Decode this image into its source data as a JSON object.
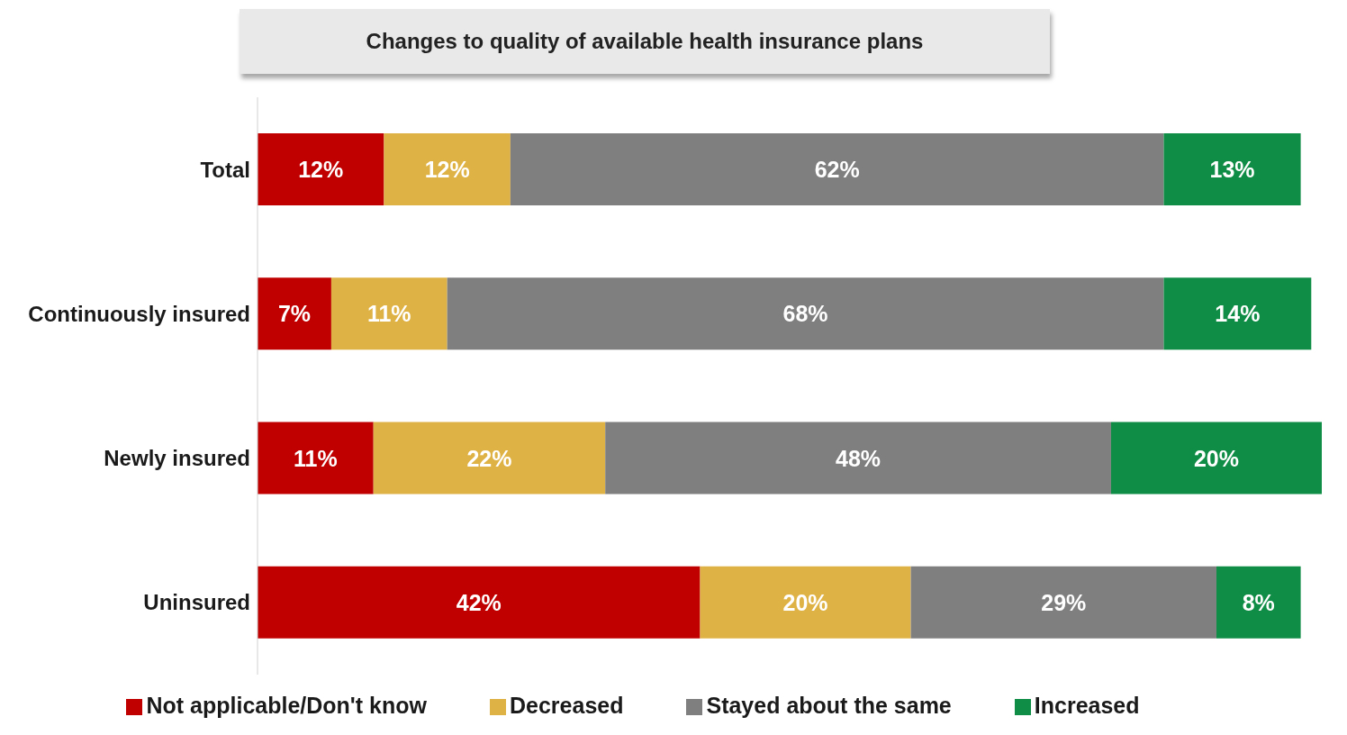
{
  "chart_data": {
    "type": "bar",
    "orientation": "horizontal",
    "stacked": true,
    "title": "Changes to quality of available health insurance plans",
    "categories": [
      "Total",
      "Continuously insured",
      "Newly insured",
      "Uninsured"
    ],
    "series": [
      {
        "name": "Not applicable/Don't know",
        "color": "#c00000",
        "values": [
          12,
          7,
          11,
          42
        ],
        "value_labels": [
          "12%",
          "7%",
          "11%",
          "42%"
        ]
      },
      {
        "name": "Decreased",
        "color": "#dfb245",
        "values": [
          12,
          11,
          22,
          20
        ],
        "value_labels": [
          "12%",
          "11%",
          "22%",
          "20%"
        ]
      },
      {
        "name": "Stayed about the same",
        "color": "#7f7f7f",
        "values": [
          62,
          68,
          48,
          29
        ],
        "value_labels": [
          "62%",
          "68%",
          "48%",
          "29%"
        ]
      },
      {
        "name": "Increased",
        "color": "#0f8c45",
        "values": [
          13,
          14,
          20,
          8
        ],
        "value_labels": [
          "13%",
          "14%",
          "20%",
          "8%"
        ]
      }
    ],
    "legend": "bottom"
  }
}
